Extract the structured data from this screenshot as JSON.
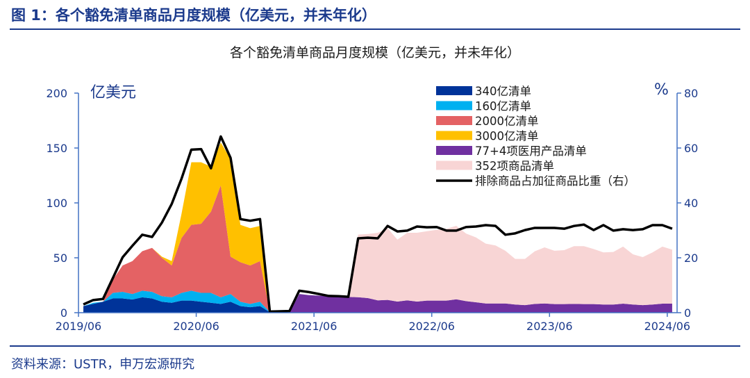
{
  "figure_title": "图 1：各个豁免清单商品月度规模（亿美元，并未年化）",
  "source": "资料来源：USTR，申万宏源研究",
  "chart_data": {
    "type": "area",
    "stacked": true,
    "title": "各个豁免清单商品月度规模（亿美元，并未年化）",
    "x_start": "2019/06",
    "x_end": "2024/06",
    "x_frequency": "monthly",
    "x_ticks": [
      "2019/06",
      "2020/06",
      "2021/06",
      "2022/06",
      "2023/06",
      "2024/06"
    ],
    "ylabel_left": "亿美元",
    "ylabel_right": "%",
    "ylim_left": [
      0,
      200
    ],
    "yticks_left": [
      "0",
      "50",
      "100",
      "150",
      "200"
    ],
    "ylim_right": [
      0,
      80
    ],
    "yticks_right": [
      "0",
      "20",
      "40",
      "60",
      "80"
    ],
    "grid": false,
    "legend_placement": "top-right",
    "series": [
      {
        "name": "340亿清单",
        "color": "#003399",
        "axis": "left",
        "values": [
          6,
          8,
          10,
          13,
          13,
          12,
          14,
          13,
          10,
          9,
          11,
          11,
          10,
          9,
          8,
          10,
          6,
          5,
          6,
          0.5,
          0,
          0,
          0,
          0,
          0,
          0,
          0,
          0,
          0,
          0,
          0,
          0,
          0,
          0,
          0,
          0,
          0,
          0,
          0,
          0,
          0,
          0,
          0,
          0,
          0,
          0,
          0,
          0,
          0,
          0,
          0,
          0,
          0,
          0,
          0,
          0,
          0,
          0,
          0,
          0,
          0
        ]
      },
      {
        "name": "160亿清单",
        "color": "#00B0F0",
        "axis": "left",
        "values": [
          0,
          1,
          0,
          5,
          6,
          5,
          6,
          6,
          5,
          5,
          7,
          9,
          8,
          9,
          6,
          7,
          4,
          3,
          4,
          0,
          0,
          0,
          0,
          0,
          0,
          0,
          0,
          0,
          0,
          0,
          0,
          0,
          0,
          0,
          0,
          0,
          0,
          0,
          0,
          0,
          0,
          0,
          0,
          0,
          0,
          0,
          0,
          0,
          0,
          0,
          0,
          0,
          0,
          0,
          0,
          0,
          0,
          0,
          0,
          0,
          0
        ]
      },
      {
        "name": "2000亿清单",
        "color": "#E46264",
        "axis": "left",
        "values": [
          0,
          0,
          0,
          12,
          24,
          30,
          36,
          40,
          35,
          29,
          50,
          60,
          63,
          74,
          102,
          34,
          36,
          35,
          37,
          0,
          0,
          0,
          0,
          0,
          0,
          0,
          0,
          0,
          0,
          0,
          0,
          0,
          0,
          0,
          0,
          0,
          0,
          0,
          0,
          0,
          0,
          0,
          0,
          0,
          0,
          0,
          0,
          0,
          0,
          0,
          0,
          0,
          0,
          0,
          0,
          0,
          0,
          0,
          0,
          0,
          0
        ]
      },
      {
        "name": "3000亿清单",
        "color": "#FFC000",
        "axis": "left",
        "values": [
          0,
          0,
          0,
          0,
          0,
          0,
          0,
          0,
          1,
          4,
          22,
          57,
          56,
          41,
          39,
          89,
          34,
          34,
          32,
          0,
          0,
          0,
          0,
          0,
          0,
          0,
          0,
          0,
          0,
          0,
          0,
          0,
          0,
          0,
          0,
          0,
          0,
          0,
          0,
          0,
          0,
          0,
          0,
          0,
          0,
          0,
          0,
          0,
          0,
          0,
          0,
          0,
          0,
          0,
          0,
          0,
          0,
          0,
          0,
          0,
          0
        ]
      },
      {
        "name": "77+4项医用产品清单",
        "color": "#7030A0",
        "axis": "left",
        "values": [
          0,
          0,
          0,
          0,
          0,
          0,
          0,
          0,
          0,
          0,
          0,
          0,
          0,
          0,
          0,
          0,
          0,
          0,
          0,
          0,
          0,
          0,
          17,
          16,
          15.5,
          15,
          14.5,
          14.3,
          14.1,
          13.3,
          11.2,
          11.6,
          10.1,
          11.2,
          10.1,
          11.0,
          11,
          11,
          12.2,
          10.5,
          9.5,
          8.4,
          8.4,
          8.4,
          7.4,
          6.9,
          8.0,
          8.4,
          7.8,
          7.8,
          8.0,
          7.8,
          7.8,
          7.4,
          7.4,
          8.2,
          7.4,
          6.9,
          7.4,
          8.2,
          8.2
        ]
      },
      {
        "name": "352项商品清单",
        "color": "#F8D5D5",
        "axis": "left",
        "values": [
          0,
          0,
          0,
          0,
          0,
          0,
          0,
          0,
          0,
          0,
          0,
          0,
          0,
          0,
          0,
          0,
          0,
          0,
          0,
          0,
          0,
          0,
          0,
          0,
          0,
          0,
          0,
          0,
          57.0,
          58.4,
          61.6,
          65.4,
          56.4,
          61.6,
          62.7,
          63.2,
          64.5,
          65.4,
          66.9,
          61.6,
          59.1,
          54.5,
          52.8,
          48.0,
          41.6,
          42.1,
          47.9,
          51.1,
          48.6,
          49.2,
          52.6,
          52.8,
          50.2,
          47.5,
          47.9,
          52.0,
          45.8,
          43.7,
          47.5,
          52.0,
          49.2
        ]
      }
    ],
    "line": {
      "name": "排除商品占加征商品比重（右）",
      "color": "#000000",
      "axis": "right",
      "values": [
        3.0,
        4.6,
        5.0,
        12.6,
        20.2,
        24.4,
        28.4,
        27.6,
        32.8,
        39.6,
        48.8,
        59.4,
        59.6,
        52.6,
        64.2,
        56.4,
        34.1,
        33.5,
        34.1,
        0.4,
        0.5,
        0.6,
        8.0,
        7.5,
        6.8,
        6.1,
        6.0,
        5.8,
        27.1,
        27.3,
        27.1,
        31.6,
        29.6,
        29.9,
        31.4,
        31.1,
        31.2,
        29.9,
        29.9,
        31.2,
        31.4,
        31.9,
        31.6,
        28.4,
        28.9,
        30.1,
        30.9,
        30.9,
        30.9,
        30.6,
        31.6,
        32.1,
        30.1,
        31.9,
        29.9,
        30.4,
        30.1,
        30.4,
        31.9,
        31.9,
        30.6
      ]
    }
  }
}
